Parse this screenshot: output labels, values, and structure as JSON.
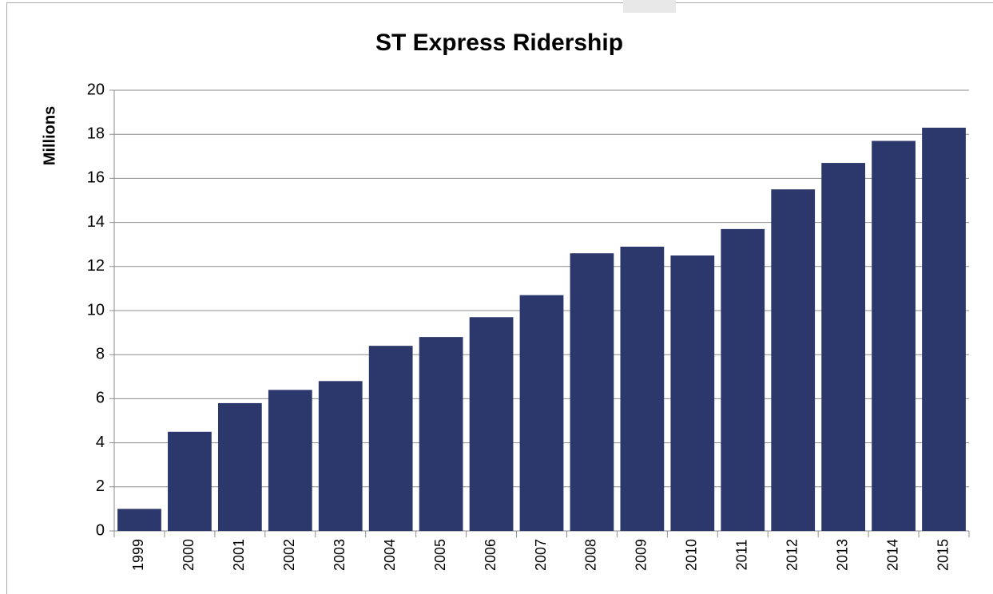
{
  "chart_data": {
    "type": "bar",
    "title": "ST Express Ridership",
    "y_label": "Millions",
    "categories": [
      "1999",
      "2000",
      "2001",
      "2002",
      "2003",
      "2004",
      "2005",
      "2006",
      "2007",
      "2008",
      "2009",
      "2010",
      "2011",
      "2012",
      "2013",
      "2014",
      "2015"
    ],
    "values": [
      1.0,
      4.5,
      5.8,
      6.4,
      6.8,
      8.4,
      8.8,
      9.7,
      10.7,
      12.6,
      12.9,
      12.5,
      13.7,
      15.5,
      16.7,
      17.7,
      18.3
    ],
    "color": "#2c376b",
    "ylim": [
      0,
      20
    ],
    "yticks": [
      0,
      2,
      4,
      6,
      8,
      10,
      12,
      14,
      16,
      18,
      20
    ],
    "grid": true
  }
}
